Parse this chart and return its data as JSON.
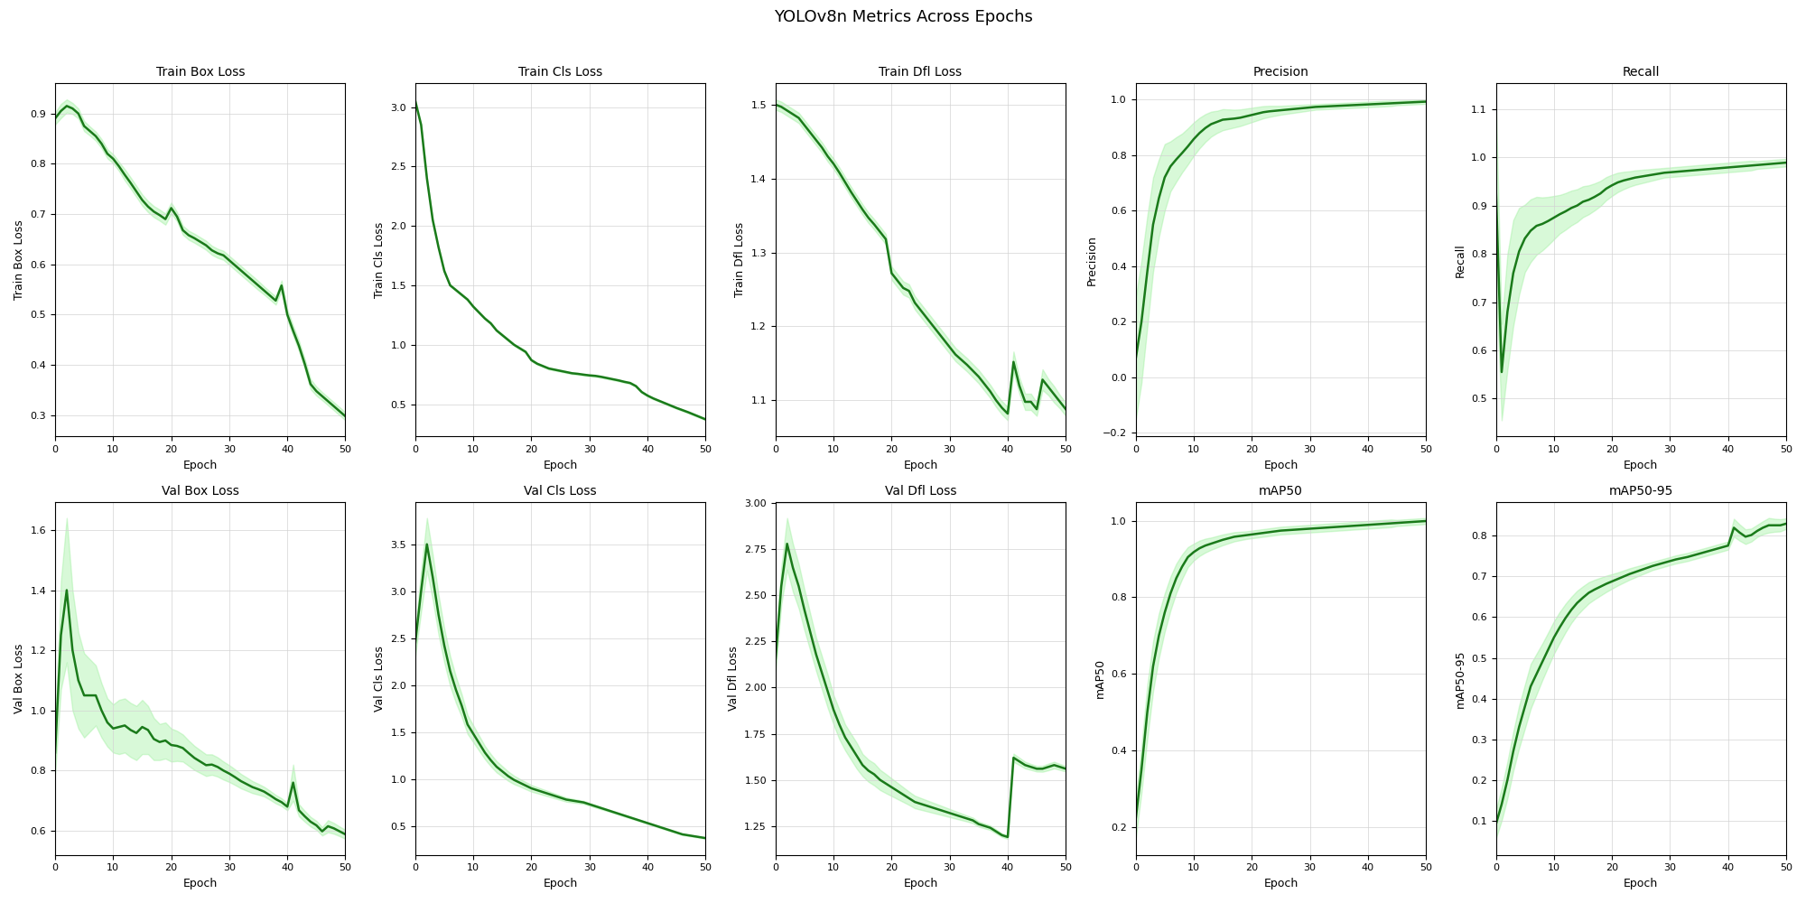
{
  "title": "YOLOv8n Metrics Across Epochs",
  "line_color": "#1a7a1a",
  "fill_color": "#90ee90",
  "fill_alpha": 0.35,
  "line_width": 1.8,
  "epochs": 51,
  "subplots": [
    {
      "title": "Train Box Loss",
      "ylabel": "Train Box Loss",
      "mean": [
        0.89,
        0.905,
        0.915,
        0.91,
        0.9,
        0.875,
        0.865,
        0.855,
        0.84,
        0.82,
        0.81,
        0.795,
        0.778,
        0.762,
        0.745,
        0.728,
        0.715,
        0.705,
        0.698,
        0.69,
        0.712,
        0.695,
        0.668,
        0.658,
        0.652,
        0.645,
        0.638,
        0.628,
        0.622,
        0.618,
        0.608,
        0.598,
        0.588,
        0.578,
        0.568,
        0.558,
        0.548,
        0.538,
        0.528,
        0.558,
        0.5,
        0.468,
        0.438,
        0.402,
        0.362,
        0.348,
        0.338,
        0.328,
        0.318,
        0.308,
        0.298
      ],
      "std": [
        0.012,
        0.014,
        0.013,
        0.011,
        0.01,
        0.01,
        0.009,
        0.009,
        0.009,
        0.009,
        0.009,
        0.009,
        0.011,
        0.011,
        0.011,
        0.011,
        0.011,
        0.011,
        0.011,
        0.011,
        0.011,
        0.009,
        0.009,
        0.009,
        0.009,
        0.009,
        0.009,
        0.009,
        0.009,
        0.009,
        0.009,
        0.009,
        0.009,
        0.009,
        0.009,
        0.009,
        0.008,
        0.008,
        0.008,
        0.01,
        0.01,
        0.01,
        0.01,
        0.01,
        0.01,
        0.009,
        0.008,
        0.008,
        0.008,
        0.008,
        0.008
      ]
    },
    {
      "title": "Train Cls Loss",
      "ylabel": "Train Cls Loss",
      "mean": [
        3.05,
        2.85,
        2.4,
        2.05,
        1.82,
        1.62,
        1.5,
        1.46,
        1.42,
        1.38,
        1.32,
        1.27,
        1.22,
        1.18,
        1.12,
        1.08,
        1.04,
        1.0,
        0.97,
        0.94,
        0.87,
        0.84,
        0.82,
        0.8,
        0.79,
        0.78,
        0.77,
        0.76,
        0.755,
        0.748,
        0.742,
        0.738,
        0.73,
        0.72,
        0.71,
        0.7,
        0.688,
        0.678,
        0.652,
        0.602,
        0.572,
        0.548,
        0.528,
        0.508,
        0.488,
        0.468,
        0.45,
        0.432,
        0.412,
        0.392,
        0.372
      ],
      "std": [
        0.014,
        0.014,
        0.012,
        0.011,
        0.011,
        0.011,
        0.009,
        0.009,
        0.009,
        0.009,
        0.009,
        0.009,
        0.009,
        0.009,
        0.009,
        0.009,
        0.009,
        0.009,
        0.009,
        0.009,
        0.009,
        0.008,
        0.008,
        0.008,
        0.008,
        0.008,
        0.008,
        0.008,
        0.008,
        0.008,
        0.008,
        0.008,
        0.008,
        0.008,
        0.008,
        0.008,
        0.008,
        0.008,
        0.008,
        0.008,
        0.008,
        0.008,
        0.008,
        0.008,
        0.008,
        0.008,
        0.008,
        0.008,
        0.008,
        0.008,
        0.008
      ]
    },
    {
      "title": "Train Dfl Loss",
      "ylabel": "Train Dfl Loss",
      "mean": [
        1.5,
        1.497,
        1.492,
        1.487,
        1.482,
        1.472,
        1.462,
        1.452,
        1.442,
        1.43,
        1.42,
        1.408,
        1.395,
        1.382,
        1.37,
        1.358,
        1.347,
        1.338,
        1.328,
        1.318,
        1.272,
        1.262,
        1.252,
        1.248,
        1.232,
        1.222,
        1.212,
        1.202,
        1.192,
        1.182,
        1.172,
        1.162,
        1.155,
        1.148,
        1.14,
        1.132,
        1.122,
        1.112,
        1.1,
        1.09,
        1.082,
        1.152,
        1.12,
        1.098,
        1.098,
        1.088,
        1.128,
        1.118,
        1.108,
        1.098,
        1.088
      ],
      "std": [
        0.007,
        0.007,
        0.007,
        0.007,
        0.007,
        0.007,
        0.007,
        0.007,
        0.007,
        0.007,
        0.007,
        0.007,
        0.007,
        0.007,
        0.007,
        0.007,
        0.007,
        0.007,
        0.007,
        0.007,
        0.009,
        0.009,
        0.009,
        0.009,
        0.009,
        0.009,
        0.009,
        0.009,
        0.009,
        0.009,
        0.009,
        0.009,
        0.009,
        0.009,
        0.009,
        0.009,
        0.009,
        0.009,
        0.009,
        0.009,
        0.009,
        0.014,
        0.011,
        0.011,
        0.011,
        0.009,
        0.014,
        0.011,
        0.011,
        0.009,
        0.009
      ]
    },
    {
      "title": "Precision",
      "ylabel": "Precision",
      "mean": [
        0.065,
        0.2,
        0.38,
        0.55,
        0.645,
        0.72,
        0.76,
        0.785,
        0.808,
        0.832,
        0.858,
        0.88,
        0.898,
        0.912,
        0.92,
        0.928,
        0.93,
        0.932,
        0.935,
        0.94,
        0.945,
        0.95,
        0.955,
        0.958,
        0.96,
        0.962,
        0.964,
        0.966,
        0.968,
        0.97,
        0.972,
        0.974,
        0.975,
        0.976,
        0.977,
        0.978,
        0.979,
        0.98,
        0.981,
        0.982,
        0.983,
        0.984,
        0.985,
        0.986,
        0.987,
        0.988,
        0.989,
        0.99,
        0.991,
        0.992,
        0.993
      ],
      "std": [
        0.22,
        0.22,
        0.2,
        0.17,
        0.14,
        0.12,
        0.09,
        0.08,
        0.07,
        0.065,
        0.06,
        0.055,
        0.05,
        0.045,
        0.04,
        0.038,
        0.035,
        0.032,
        0.03,
        0.028,
        0.026,
        0.024,
        0.022,
        0.02,
        0.018,
        0.016,
        0.015,
        0.014,
        0.013,
        0.012,
        0.011,
        0.01,
        0.01,
        0.01,
        0.01,
        0.01,
        0.01,
        0.01,
        0.01,
        0.01,
        0.01,
        0.01,
        0.01,
        0.01,
        0.01,
        0.008,
        0.008,
        0.008,
        0.008,
        0.008,
        0.008
      ]
    },
    {
      "title": "Recall",
      "ylabel": "Recall",
      "mean": [
        0.94,
        0.555,
        0.68,
        0.76,
        0.805,
        0.832,
        0.848,
        0.858,
        0.862,
        0.868,
        0.875,
        0.882,
        0.888,
        0.895,
        0.9,
        0.908,
        0.912,
        0.918,
        0.925,
        0.935,
        0.942,
        0.948,
        0.952,
        0.955,
        0.958,
        0.96,
        0.962,
        0.964,
        0.966,
        0.968,
        0.969,
        0.97,
        0.971,
        0.972,
        0.973,
        0.974,
        0.975,
        0.976,
        0.977,
        0.978,
        0.979,
        0.98,
        0.981,
        0.982,
        0.983,
        0.984,
        0.985,
        0.986,
        0.987,
        0.988,
        0.989
      ],
      "std": [
        0.18,
        0.1,
        0.12,
        0.11,
        0.09,
        0.07,
        0.065,
        0.06,
        0.055,
        0.05,
        0.045,
        0.04,
        0.038,
        0.036,
        0.034,
        0.032,
        0.03,
        0.028,
        0.026,
        0.024,
        0.022,
        0.02,
        0.018,
        0.016,
        0.015,
        0.014,
        0.013,
        0.012,
        0.011,
        0.01,
        0.01,
        0.01,
        0.01,
        0.01,
        0.01,
        0.01,
        0.01,
        0.01,
        0.01,
        0.01,
        0.01,
        0.01,
        0.01,
        0.01,
        0.01,
        0.008,
        0.008,
        0.008,
        0.008,
        0.008,
        0.008
      ]
    },
    {
      "title": "Val Box Loss",
      "ylabel": "Val Box Loss",
      "mean": [
        0.86,
        1.25,
        1.4,
        1.2,
        1.1,
        1.05,
        1.05,
        1.05,
        1.0,
        0.96,
        0.94,
        0.945,
        0.95,
        0.935,
        0.925,
        0.945,
        0.935,
        0.905,
        0.895,
        0.9,
        0.885,
        0.882,
        0.875,
        0.858,
        0.842,
        0.83,
        0.818,
        0.82,
        0.812,
        0.8,
        0.79,
        0.778,
        0.765,
        0.755,
        0.745,
        0.738,
        0.73,
        0.718,
        0.705,
        0.695,
        0.68,
        0.76,
        0.668,
        0.648,
        0.63,
        0.618,
        0.598,
        0.615,
        0.608,
        0.598,
        0.588
      ],
      "std": [
        0.07,
        0.18,
        0.24,
        0.2,
        0.16,
        0.14,
        0.12,
        0.1,
        0.09,
        0.08,
        0.08,
        0.09,
        0.09,
        0.09,
        0.09,
        0.09,
        0.08,
        0.07,
        0.06,
        0.06,
        0.055,
        0.05,
        0.045,
        0.042,
        0.04,
        0.038,
        0.036,
        0.034,
        0.032,
        0.03,
        0.028,
        0.026,
        0.024,
        0.022,
        0.02,
        0.018,
        0.016,
        0.015,
        0.014,
        0.013,
        0.012,
        0.06,
        0.02,
        0.018,
        0.016,
        0.015,
        0.014,
        0.02,
        0.018,
        0.016,
        0.015
      ]
    },
    {
      "title": "Val Cls Loss",
      "ylabel": "Val Cls Loss",
      "mean": [
        2.45,
        3.0,
        3.5,
        3.15,
        2.75,
        2.42,
        2.15,
        1.95,
        1.78,
        1.58,
        1.48,
        1.38,
        1.28,
        1.2,
        1.13,
        1.08,
        1.03,
        0.99,
        0.96,
        0.93,
        0.9,
        0.88,
        0.86,
        0.84,
        0.82,
        0.8,
        0.78,
        0.77,
        0.76,
        0.75,
        0.73,
        0.71,
        0.69,
        0.67,
        0.65,
        0.63,
        0.61,
        0.59,
        0.57,
        0.55,
        0.53,
        0.51,
        0.49,
        0.47,
        0.45,
        0.43,
        0.41,
        0.4,
        0.39,
        0.38,
        0.37
      ],
      "std": [
        0.14,
        0.22,
        0.28,
        0.24,
        0.21,
        0.18,
        0.16,
        0.14,
        0.12,
        0.1,
        0.09,
        0.08,
        0.07,
        0.065,
        0.06,
        0.055,
        0.05,
        0.045,
        0.04,
        0.038,
        0.035,
        0.032,
        0.03,
        0.028,
        0.026,
        0.024,
        0.022,
        0.02,
        0.018,
        0.016,
        0.015,
        0.014,
        0.013,
        0.012,
        0.011,
        0.01,
        0.01,
        0.01,
        0.01,
        0.01,
        0.01,
        0.01,
        0.01,
        0.01,
        0.01,
        0.008,
        0.008,
        0.008,
        0.008,
        0.008,
        0.008
      ]
    },
    {
      "title": "Val Dfl Loss",
      "ylabel": "Val Dfl Loss",
      "mean": [
        2.15,
        2.55,
        2.78,
        2.65,
        2.55,
        2.42,
        2.3,
        2.18,
        2.08,
        1.98,
        1.88,
        1.8,
        1.73,
        1.68,
        1.63,
        1.58,
        1.55,
        1.53,
        1.5,
        1.48,
        1.46,
        1.44,
        1.42,
        1.4,
        1.38,
        1.37,
        1.36,
        1.35,
        1.34,
        1.33,
        1.32,
        1.31,
        1.3,
        1.29,
        1.28,
        1.26,
        1.25,
        1.24,
        1.22,
        1.2,
        1.19,
        1.62,
        1.6,
        1.58,
        1.57,
        1.56,
        1.56,
        1.57,
        1.58,
        1.57,
        1.56
      ],
      "std": [
        0.07,
        0.1,
        0.14,
        0.13,
        0.12,
        0.11,
        0.1,
        0.09,
        0.09,
        0.09,
        0.08,
        0.08,
        0.07,
        0.07,
        0.07,
        0.06,
        0.06,
        0.06,
        0.055,
        0.052,
        0.048,
        0.044,
        0.04,
        0.036,
        0.034,
        0.032,
        0.03,
        0.028,
        0.026,
        0.024,
        0.022,
        0.02,
        0.018,
        0.016,
        0.015,
        0.014,
        0.013,
        0.012,
        0.011,
        0.01,
        0.01,
        0.022,
        0.02,
        0.018,
        0.016,
        0.015,
        0.016,
        0.018,
        0.018,
        0.016,
        0.015
      ]
    },
    {
      "title": "mAP50",
      "ylabel": "mAP50",
      "mean": [
        0.22,
        0.35,
        0.5,
        0.62,
        0.7,
        0.76,
        0.81,
        0.85,
        0.88,
        0.905,
        0.918,
        0.928,
        0.935,
        0.94,
        0.945,
        0.95,
        0.954,
        0.958,
        0.96,
        0.962,
        0.964,
        0.966,
        0.968,
        0.97,
        0.972,
        0.974,
        0.975,
        0.976,
        0.977,
        0.978,
        0.979,
        0.98,
        0.981,
        0.982,
        0.983,
        0.984,
        0.985,
        0.986,
        0.987,
        0.988,
        0.989,
        0.99,
        0.991,
        0.992,
        0.993,
        0.994,
        0.995,
        0.996,
        0.997,
        0.998,
        0.999
      ],
      "std": [
        0.05,
        0.06,
        0.07,
        0.065,
        0.058,
        0.05,
        0.044,
        0.038,
        0.032,
        0.026,
        0.022,
        0.02,
        0.018,
        0.016,
        0.015,
        0.014,
        0.013,
        0.012,
        0.011,
        0.01,
        0.01,
        0.01,
        0.01,
        0.01,
        0.01,
        0.01,
        0.01,
        0.01,
        0.01,
        0.01,
        0.01,
        0.01,
        0.01,
        0.01,
        0.01,
        0.01,
        0.01,
        0.01,
        0.01,
        0.01,
        0.01,
        0.01,
        0.01,
        0.01,
        0.01,
        0.008,
        0.008,
        0.008,
        0.008,
        0.008,
        0.008
      ]
    },
    {
      "title": "mAP50-95",
      "ylabel": "mAP50-95",
      "mean": [
        0.09,
        0.14,
        0.2,
        0.27,
        0.33,
        0.38,
        0.43,
        0.46,
        0.49,
        0.52,
        0.55,
        0.575,
        0.598,
        0.618,
        0.635,
        0.648,
        0.66,
        0.668,
        0.675,
        0.682,
        0.688,
        0.694,
        0.7,
        0.706,
        0.711,
        0.716,
        0.721,
        0.726,
        0.73,
        0.734,
        0.738,
        0.742,
        0.745,
        0.748,
        0.752,
        0.756,
        0.76,
        0.764,
        0.768,
        0.772,
        0.776,
        0.82,
        0.808,
        0.798,
        0.802,
        0.812,
        0.82,
        0.826,
        0.826,
        0.826,
        0.83
      ],
      "std": [
        0.035,
        0.04,
        0.045,
        0.048,
        0.052,
        0.054,
        0.055,
        0.05,
        0.045,
        0.042,
        0.04,
        0.038,
        0.035,
        0.032,
        0.03,
        0.028,
        0.026,
        0.024,
        0.022,
        0.02,
        0.018,
        0.016,
        0.015,
        0.014,
        0.013,
        0.012,
        0.011,
        0.01,
        0.01,
        0.01,
        0.01,
        0.01,
        0.01,
        0.01,
        0.01,
        0.01,
        0.01,
        0.01,
        0.01,
        0.01,
        0.01,
        0.022,
        0.02,
        0.018,
        0.016,
        0.015,
        0.016,
        0.018,
        0.016,
        0.015,
        0.013
      ]
    }
  ]
}
